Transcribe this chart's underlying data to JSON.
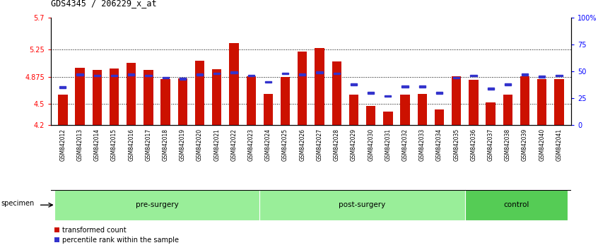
{
  "title": "GDS4345 / 206229_x_at",
  "categories": [
    "GSM842012",
    "GSM842013",
    "GSM842014",
    "GSM842015",
    "GSM842016",
    "GSM842017",
    "GSM842018",
    "GSM842019",
    "GSM842020",
    "GSM842021",
    "GSM842022",
    "GSM842023",
    "GSM842024",
    "GSM842025",
    "GSM842026",
    "GSM842027",
    "GSM842028",
    "GSM842029",
    "GSM842030",
    "GSM842031",
    "GSM842032",
    "GSM842033",
    "GSM842034",
    "GSM842035",
    "GSM842036",
    "GSM842037",
    "GSM842038",
    "GSM842039",
    "GSM842040",
    "GSM842041"
  ],
  "bar_values": [
    4.62,
    5.0,
    4.97,
    4.99,
    5.07,
    4.97,
    4.84,
    4.85,
    5.1,
    4.98,
    5.34,
    4.88,
    4.63,
    4.87,
    5.22,
    5.27,
    5.09,
    4.62,
    4.47,
    4.39,
    4.62,
    4.63,
    4.42,
    4.88,
    4.83,
    4.52,
    4.62,
    4.88,
    4.84,
    4.84
  ],
  "percentile_values": [
    35,
    47,
    46,
    46,
    47,
    46,
    44,
    43,
    47,
    48,
    49,
    46,
    40,
    48,
    47,
    49,
    48,
    38,
    30,
    27,
    36,
    36,
    30,
    44,
    46,
    34,
    38,
    47,
    45,
    46
  ],
  "bar_color": "#cc1100",
  "blue_color": "#3333cc",
  "ylim_left": [
    4.2,
    5.7
  ],
  "yticks_left": [
    4.2,
    4.5,
    4.875,
    5.25,
    5.7
  ],
  "ytick_labels_left": [
    "4.2",
    "4.5",
    "4.875",
    "5.25",
    "5.7"
  ],
  "ylim_right": [
    0,
    100
  ],
  "yticks_right": [
    0,
    25,
    50,
    75,
    100
  ],
  "ytick_labels_right": [
    "0",
    "25",
    "50",
    "75",
    "100%"
  ],
  "hlines": [
    4.5,
    4.875,
    5.25
  ],
  "specimen_label": "specimen",
  "legend_items": [
    "transformed count",
    "percentile rank within the sample"
  ],
  "legend_colors": [
    "#cc1100",
    "#3333cc"
  ],
  "group_labels": [
    "pre-surgery",
    "post-surgery",
    "control"
  ],
  "group_starts": [
    0,
    12,
    24
  ],
  "group_ends": [
    12,
    24,
    30
  ],
  "group_colors": [
    "#99ee99",
    "#99ee99",
    "#55cc55"
  ],
  "xtick_bg_color": "#cccccc",
  "plot_bg_color": "#ffffff"
}
